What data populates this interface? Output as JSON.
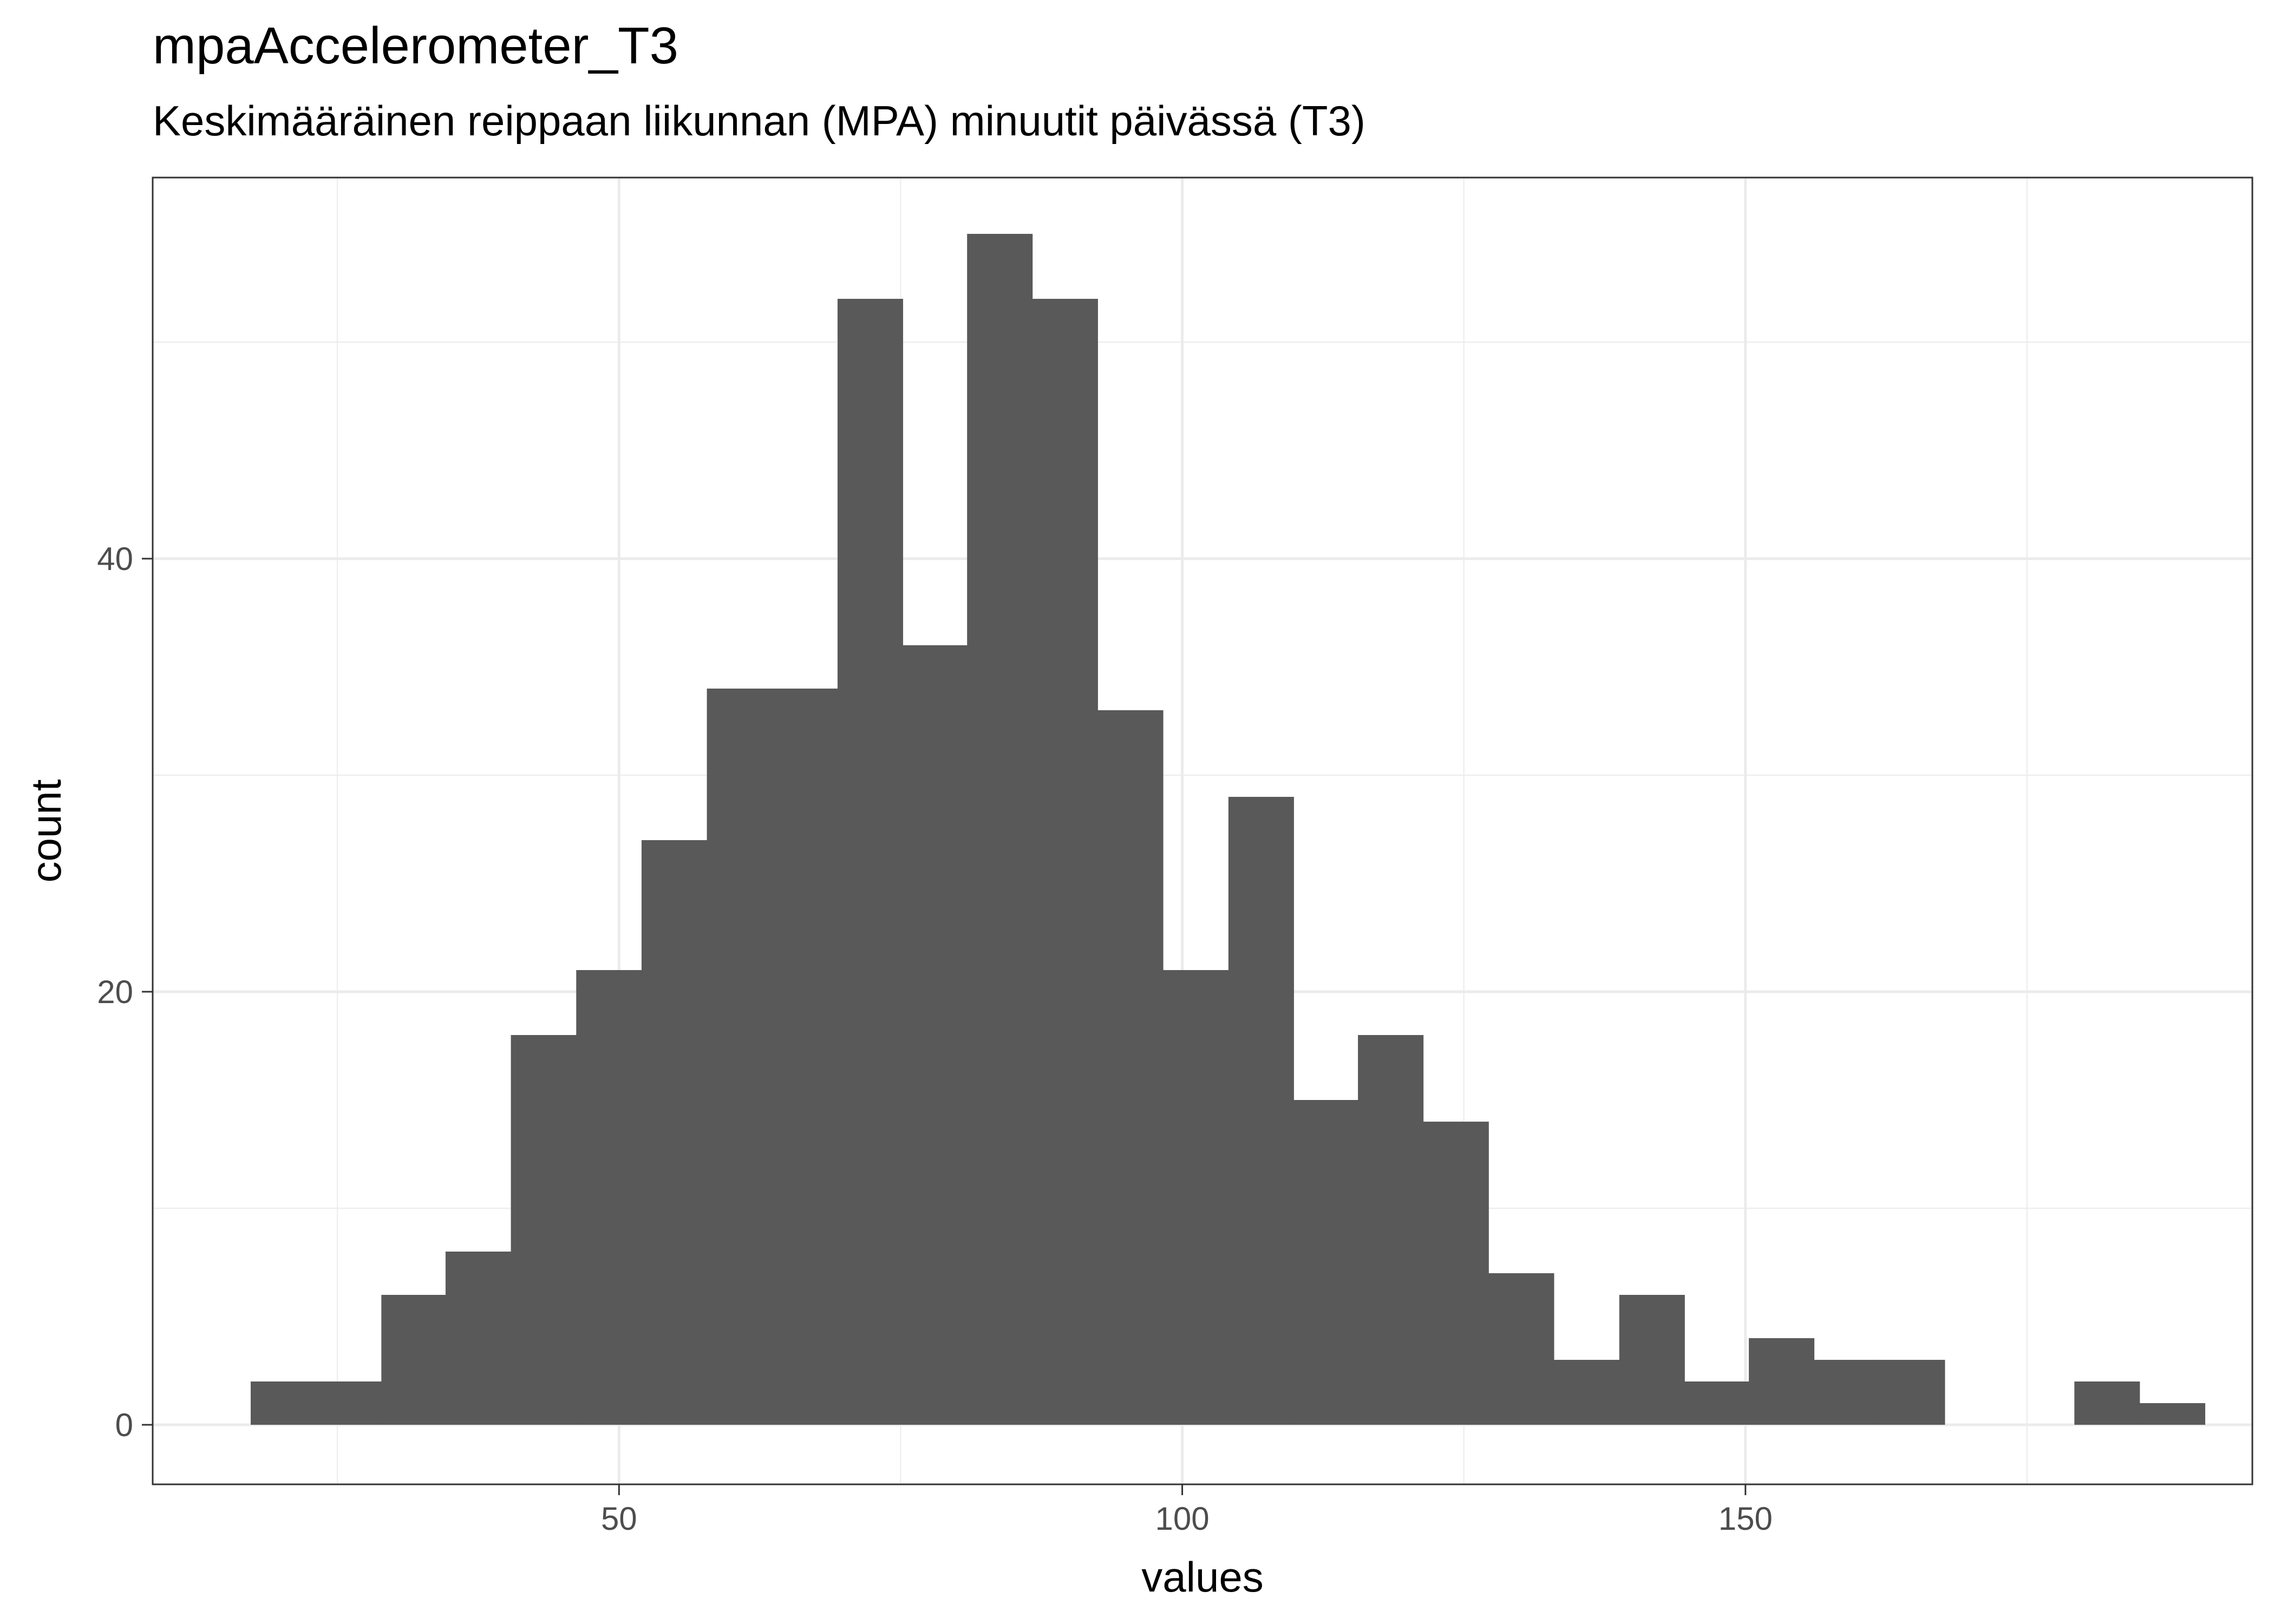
{
  "chart_data": {
    "type": "bar",
    "title": "mpaAccelerometer_T3",
    "subtitle": "Keskimääräinen reippaan liikunnan (MPA) minuutit päivässä (T3)",
    "xlabel": "values",
    "ylabel": "count",
    "xlim": [
      8.6,
      195.0
    ],
    "ylim": [
      -2.75,
      57.6
    ],
    "x_ticks": [
      50,
      100,
      150
    ],
    "y_ticks": [
      0,
      20,
      40
    ],
    "grid": true,
    "bin_width": 5.78,
    "bins": [
      {
        "x0": 17.3,
        "count": 2
      },
      {
        "x0": 23.1,
        "count": 2
      },
      {
        "x0": 28.9,
        "count": 6
      },
      {
        "x0": 34.6,
        "count": 8
      },
      {
        "x0": 40.4,
        "count": 18
      },
      {
        "x0": 46.2,
        "count": 21
      },
      {
        "x0": 52.0,
        "count": 27
      },
      {
        "x0": 57.8,
        "count": 34
      },
      {
        "x0": 63.6,
        "count": 34
      },
      {
        "x0": 69.4,
        "count": 52
      },
      {
        "x0": 75.1,
        "count": 36
      },
      {
        "x0": 80.9,
        "count": 55
      },
      {
        "x0": 86.7,
        "count": 52
      },
      {
        "x0": 92.5,
        "count": 33
      },
      {
        "x0": 98.3,
        "count": 21
      },
      {
        "x0": 104.1,
        "count": 29
      },
      {
        "x0": 109.8,
        "count": 15
      },
      {
        "x0": 115.6,
        "count": 18
      },
      {
        "x0": 121.4,
        "count": 14
      },
      {
        "x0": 127.2,
        "count": 7
      },
      {
        "x0": 133.0,
        "count": 3
      },
      {
        "x0": 138.8,
        "count": 6
      },
      {
        "x0": 144.5,
        "count": 2
      },
      {
        "x0": 150.3,
        "count": 4
      },
      {
        "x0": 156.1,
        "count": 3
      },
      {
        "x0": 161.9,
        "count": 3
      },
      {
        "x0": 167.7,
        "count": 0
      },
      {
        "x0": 173.5,
        "count": 0
      },
      {
        "x0": 179.2,
        "count": 2
      },
      {
        "x0": 185.0,
        "count": 1
      }
    ],
    "colors": {
      "bar": "#595959",
      "grid": "#ebebeb",
      "panel_border": "#333333",
      "tick_label": "#4d4d4d"
    }
  }
}
